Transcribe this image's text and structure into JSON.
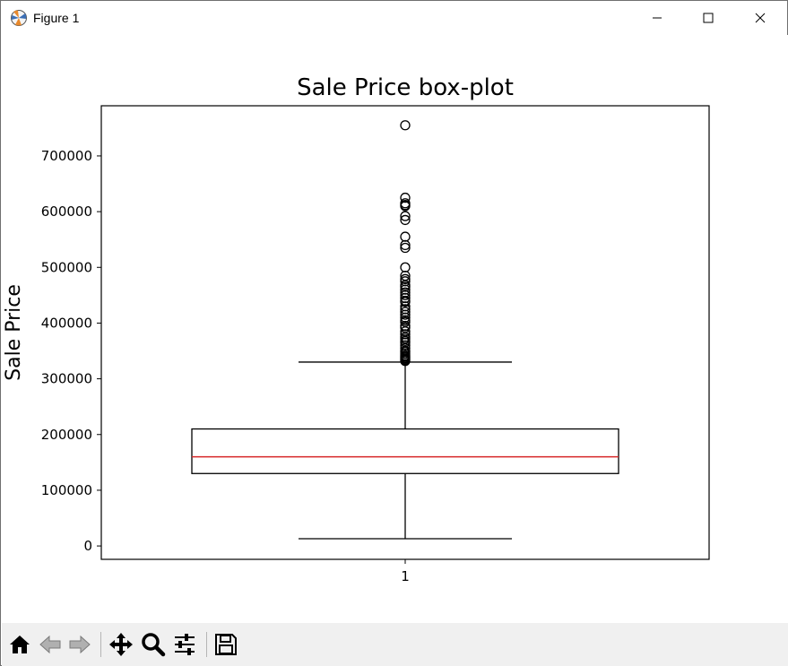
{
  "window": {
    "title": "Figure 1",
    "app_icon": "matplotlib-figure-icon",
    "controls": [
      "minimize-icon",
      "maximize-icon",
      "close-icon"
    ]
  },
  "toolbar": {
    "buttons": [
      {
        "name": "home-icon"
      },
      {
        "name": "back-arrow-icon"
      },
      {
        "name": "forward-arrow-icon"
      },
      {
        "name": "pan-move-icon"
      },
      {
        "name": "zoom-magnifier-icon"
      },
      {
        "name": "configure-subplots-icon"
      },
      {
        "name": "save-floppy-icon"
      }
    ]
  },
  "chart_data": {
    "type": "boxplot",
    "title": "Sale Price box-plot",
    "ylabel": "Sale Price",
    "xlabel": "",
    "categories": [
      "1"
    ],
    "ylim": [
      -24000,
      790000
    ],
    "yticks": [
      0,
      100000,
      200000,
      300000,
      400000,
      500000,
      600000,
      700000
    ],
    "ytick_labels": [
      "0",
      "100000",
      "200000",
      "300000",
      "400000",
      "500000",
      "600000",
      "700000"
    ],
    "box": {
      "whisker_low": 13000,
      "q1": 130000,
      "median": 160000,
      "q3": 210000,
      "whisker_high": 330000
    },
    "outliers": [
      755000,
      625000,
      615000,
      612000,
      610000,
      592000,
      585000,
      555000,
      540000,
      535000,
      500000,
      485000,
      479000,
      475000,
      468000,
      465000,
      460000,
      455000,
      450000,
      445000,
      440000,
      438000,
      430000,
      425000,
      420000,
      415000,
      410000,
      405000,
      402000,
      395000,
      392000,
      385000,
      380000,
      375000,
      372000,
      368000,
      365000,
      360000,
      355000,
      350000,
      348000,
      345000,
      342000,
      340000,
      338000,
      336000,
      334000,
      332000
    ],
    "grid": false,
    "colors": {
      "median": "#d62728",
      "box": "#000000",
      "flier_edge": "#000000"
    }
  }
}
